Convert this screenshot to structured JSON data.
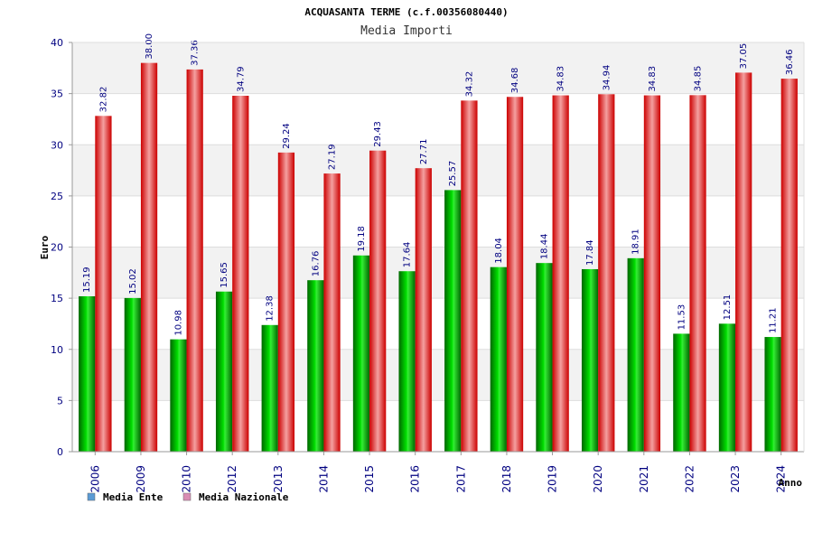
{
  "chart_data": {
    "type": "bar",
    "title": "ACQUASANTA TERME (c.f.00356080440)",
    "subtitle": "Media Importi",
    "xlabel": "Anno",
    "ylabel": "Euro",
    "ylim": [
      0,
      40
    ],
    "yticks": [
      "0",
      "5",
      "10",
      "15",
      "20",
      "25",
      "30",
      "35",
      "40"
    ],
    "grid": true,
    "legend_position": "bottom-left",
    "categories": [
      "2006",
      "2009",
      "2010",
      "2012",
      "2013",
      "2014",
      "2015",
      "2016",
      "2017",
      "2018",
      "2019",
      "2020",
      "2021",
      "2022",
      "2023",
      "2024"
    ],
    "series": [
      {
        "name": "Media Ente",
        "legend_color": "#5b9bd5",
        "bar_color": "#00b000",
        "values": [
          15.19,
          15.02,
          10.98,
          15.65,
          12.38,
          16.76,
          19.18,
          17.64,
          25.57,
          18.04,
          18.44,
          17.84,
          18.91,
          11.53,
          12.51,
          11.21
        ],
        "labels": [
          "15.19",
          "15.02",
          "10.98",
          "15.65",
          "12.38",
          "16.76",
          "19.18",
          "17.64",
          "25.57",
          "18.04",
          "18.44",
          "17.84",
          "18.91",
          "11.53",
          "12.51",
          "11.21"
        ]
      },
      {
        "name": "Media Nazionale",
        "legend_color": "#d98cb3",
        "bar_color": "#ee1111",
        "values": [
          32.82,
          38.0,
          37.36,
          34.79,
          29.24,
          27.19,
          29.43,
          27.71,
          34.32,
          34.68,
          34.83,
          34.94,
          34.83,
          34.85,
          37.05,
          36.46
        ],
        "labels": [
          "32.82",
          "38.00",
          "37.36",
          "34.79",
          "29.24",
          "27.19",
          "29.43",
          "27.71",
          "34.32",
          "34.68",
          "34.83",
          "34.94",
          "34.83",
          "34.85",
          "37.05",
          "36.46"
        ]
      }
    ]
  }
}
